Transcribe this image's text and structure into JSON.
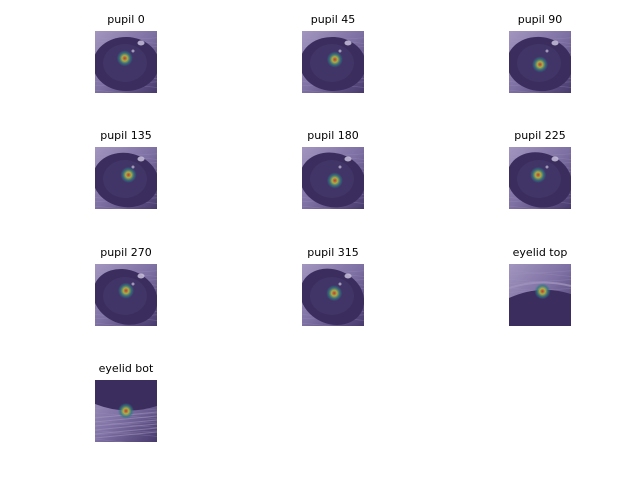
{
  "figure": {
    "panels": [
      {
        "title": "pupil 0",
        "kind": "pupil",
        "heat": [
          0.48,
          0.44
        ],
        "orient": 0
      },
      {
        "title": "pupil 45",
        "kind": "pupil",
        "heat": [
          0.53,
          0.46
        ],
        "orient": 45
      },
      {
        "title": "pupil 90",
        "kind": "pupil",
        "heat": [
          0.5,
          0.54
        ],
        "orient": 90
      },
      {
        "title": "pupil 135",
        "kind": "pupil",
        "heat": [
          0.54,
          0.45
        ],
        "orient": 135
      },
      {
        "title": "pupil 180",
        "kind": "pupil",
        "heat": [
          0.53,
          0.54
        ],
        "orient": 180
      },
      {
        "title": "pupil 225",
        "kind": "pupil",
        "heat": [
          0.47,
          0.45
        ],
        "orient": 225
      },
      {
        "title": "pupil 270",
        "kind": "pupil",
        "heat": [
          0.5,
          0.43
        ],
        "orient": 270
      },
      {
        "title": "pupil 315",
        "kind": "pupil",
        "heat": [
          0.52,
          0.47
        ],
        "orient": 315
      },
      {
        "title": "eyelid top",
        "kind": "eyelid-top",
        "heat": [
          0.54,
          0.44
        ],
        "orient": 0
      },
      {
        "title": "eyelid bot",
        "kind": "eyelid-bot",
        "heat": [
          0.5,
          0.5
        ],
        "orient": 0
      }
    ],
    "colors": {
      "background": "#ffffff",
      "iris_dark": "#3b2f5c",
      "iris_mid": "#4a3d6e",
      "fur_light": "#8c7fb0",
      "fur_highlight": "#b9aed3",
      "heat_outer": "#2a8c8a",
      "heat_mid": "#c9d23a",
      "heat_core": "#d83a2a"
    }
  }
}
